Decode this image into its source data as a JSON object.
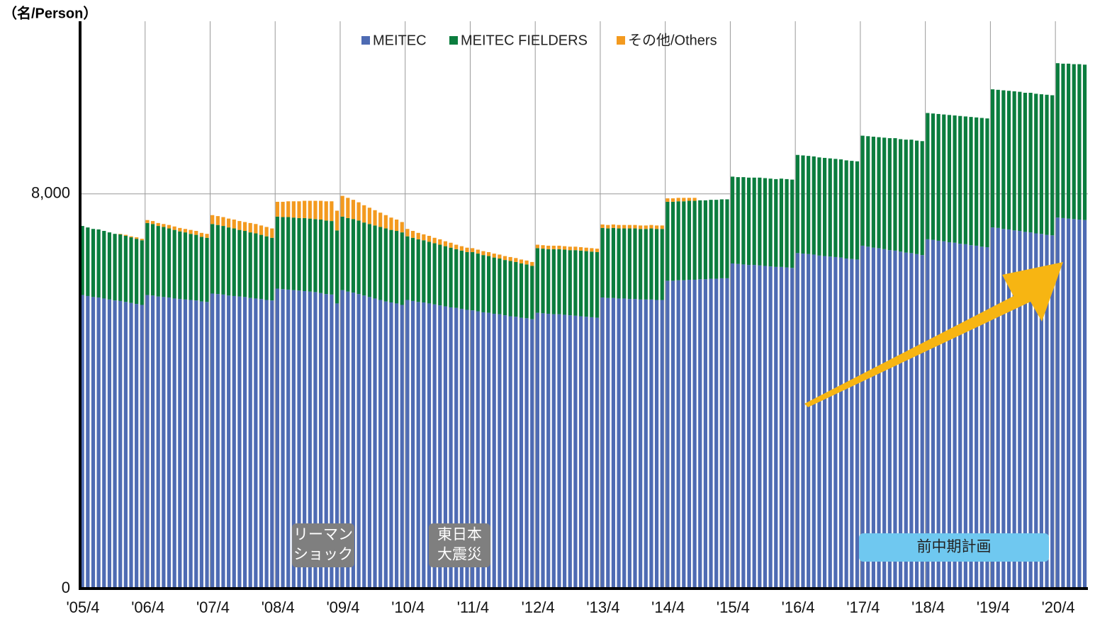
{
  "chart_data": {
    "type": "stacked_bar",
    "y_unit_label": "（名/Person）",
    "categories": [
      "'05/4",
      null,
      null,
      null,
      null,
      null,
      null,
      null,
      null,
      null,
      null,
      null,
      "'06/4",
      null,
      null,
      null,
      null,
      null,
      null,
      null,
      null,
      null,
      null,
      null,
      "'07/4",
      null,
      null,
      null,
      null,
      null,
      null,
      null,
      null,
      null,
      null,
      null,
      "'08/4",
      null,
      null,
      null,
      null,
      null,
      null,
      null,
      null,
      null,
      null,
      null,
      "'09/4",
      null,
      null,
      null,
      null,
      null,
      null,
      null,
      null,
      null,
      null,
      null,
      "'10/4",
      null,
      null,
      null,
      null,
      null,
      null,
      null,
      null,
      null,
      null,
      null,
      "'11/4",
      null,
      null,
      null,
      null,
      null,
      null,
      null,
      null,
      null,
      null,
      null,
      "'12/4",
      null,
      null,
      null,
      null,
      null,
      null,
      null,
      null,
      null,
      null,
      null,
      "'13/4",
      null,
      null,
      null,
      null,
      null,
      null,
      null,
      null,
      null,
      null,
      null,
      "'14/4",
      null,
      null,
      null,
      null,
      null,
      null,
      null,
      null,
      null,
      null,
      null,
      "'15/4",
      null,
      null,
      null,
      null,
      null,
      null,
      null,
      null,
      null,
      null,
      null,
      "'16/4",
      null,
      null,
      null,
      null,
      null,
      null,
      null,
      null,
      null,
      null,
      null,
      "'17/4",
      null,
      null,
      null,
      null,
      null,
      null,
      null,
      null,
      null,
      null,
      null,
      "'18/4",
      null,
      null,
      null,
      null,
      null,
      null,
      null,
      null,
      null,
      null,
      null,
      "'19/4",
      null,
      null,
      null,
      null,
      null,
      null,
      null,
      null,
      null,
      null,
      null,
      "'20/4",
      null,
      null,
      null,
      null,
      null
    ],
    "series": [
      {
        "name": "MEITEC",
        "color": "#4e6bb3",
        "values": [
          5950,
          5930,
          5910,
          5900,
          5880,
          5860,
          5840,
          5830,
          5810,
          5790,
          5770,
          5750,
          5950,
          5940,
          5920,
          5910,
          5900,
          5880,
          5870,
          5860,
          5850,
          5840,
          5820,
          5810,
          5980,
          5970,
          5960,
          5940,
          5930,
          5920,
          5910,
          5890,
          5880,
          5870,
          5850,
          5840,
          6080,
          6070,
          6060,
          6050,
          6040,
          6030,
          6020,
          6010,
          5990,
          5970,
          5960,
          5780,
          6050,
          6020,
          6000,
          5970,
          5940,
          5910,
          5880,
          5850,
          5820,
          5800,
          5780,
          5750,
          5850,
          5830,
          5810,
          5800,
          5780,
          5760,
          5740,
          5720,
          5700,
          5690,
          5670,
          5650,
          5640,
          5620,
          5600,
          5590,
          5570,
          5560,
          5540,
          5520,
          5510,
          5490,
          5480,
          5460,
          5590,
          5580,
          5570,
          5560,
          5560,
          5550,
          5540,
          5530,
          5520,
          5510,
          5500,
          5490,
          5900,
          5890,
          5890,
          5880,
          5880,
          5870,
          5870,
          5860,
          5860,
          5860,
          5850,
          5850,
          6240,
          6240,
          6250,
          6250,
          6260,
          6260,
          6270,
          6270,
          6280,
          6280,
          6290,
          6290,
          6590,
          6580,
          6570,
          6560,
          6560,
          6550,
          6540,
          6530,
          6520,
          6520,
          6510,
          6500,
          6800,
          6790,
          6780,
          6770,
          6750,
          6740,
          6730,
          6720,
          6710,
          6690,
          6680,
          6670,
          6950,
          6930,
          6910,
          6900,
          6880,
          6860,
          6850,
          6830,
          6810,
          6800,
          6780,
          6760,
          7080,
          7070,
          7050,
          7040,
          7020,
          7010,
          6990,
          6980,
          6960,
          6950,
          6930,
          6920,
          7320,
          7310,
          7290,
          7280,
          7260,
          7250,
          7230,
          7220,
          7200,
          7190,
          7170,
          7160,
          7520,
          7510,
          7500,
          7490,
          7480,
          7470
        ]
      },
      {
        "name": "MEITEC FIELDERS",
        "color": "#0b7d3e",
        "values": [
          1400,
          1390,
          1380,
          1380,
          1370,
          1360,
          1350,
          1350,
          1340,
          1330,
          1320,
          1310,
          1460,
          1450,
          1430,
          1420,
          1400,
          1390,
          1370,
          1360,
          1340,
          1330,
          1310,
          1300,
          1410,
          1400,
          1390,
          1380,
          1370,
          1350,
          1340,
          1330,
          1320,
          1300,
          1290,
          1270,
          1460,
          1460,
          1470,
          1470,
          1470,
          1480,
          1480,
          1480,
          1490,
          1490,
          1490,
          1480,
          1490,
          1490,
          1490,
          1490,
          1480,
          1480,
          1480,
          1480,
          1480,
          1470,
          1470,
          1470,
          1290,
          1280,
          1270,
          1260,
          1250,
          1240,
          1230,
          1220,
          1210,
          1190,
          1180,
          1170,
          1180,
          1170,
          1160,
          1150,
          1140,
          1130,
          1120,
          1120,
          1110,
          1100,
          1090,
          1080,
          1310,
          1310,
          1310,
          1320,
          1320,
          1320,
          1320,
          1330,
          1330,
          1330,
          1330,
          1330,
          1410,
          1410,
          1420,
          1420,
          1420,
          1430,
          1430,
          1430,
          1430,
          1440,
          1440,
          1440,
          1600,
          1600,
          1600,
          1600,
          1600,
          1600,
          1600,
          1600,
          1600,
          1600,
          1600,
          1600,
          1760,
          1760,
          1770,
          1770,
          1770,
          1780,
          1780,
          1780,
          1780,
          1790,
          1790,
          1790,
          1990,
          1990,
          1990,
          1990,
          1990,
          1990,
          1990,
          1990,
          1990,
          1990,
          1990,
          1990,
          2230,
          2240,
          2250,
          2250,
          2260,
          2270,
          2280,
          2280,
          2290,
          2300,
          2300,
          2310,
          2560,
          2560,
          2570,
          2570,
          2580,
          2580,
          2590,
          2590,
          2600,
          2600,
          2610,
          2610,
          2800,
          2800,
          2810,
          2810,
          2820,
          2820,
          2820,
          2830,
          2830,
          2830,
          2840,
          2840,
          3130,
          3130,
          3140,
          3140,
          3150,
          3150
        ]
      },
      {
        "name": "その他/Others",
        "color": "#f39a1f",
        "values": [
          0,
          0,
          0,
          0,
          0,
          0,
          0,
          10,
          20,
          20,
          30,
          30,
          60,
          60,
          60,
          60,
          70,
          70,
          70,
          70,
          80,
          80,
          80,
          80,
          180,
          180,
          180,
          180,
          180,
          180,
          180,
          190,
          190,
          190,
          190,
          190,
          300,
          310,
          320,
          330,
          340,
          350,
          360,
          370,
          380,
          390,
          400,
          400,
          420,
          410,
          390,
          370,
          350,
          330,
          310,
          290,
          270,
          250,
          230,
          210,
          150,
          140,
          130,
          120,
          120,
          110,
          110,
          100,
          100,
          90,
          90,
          90,
          80,
          80,
          80,
          80,
          80,
          80,
          80,
          80,
          80,
          80,
          80,
          80,
          70,
          70,
          70,
          70,
          70,
          70,
          70,
          70,
          70,
          70,
          70,
          70,
          70,
          70,
          70,
          70,
          70,
          70,
          70,
          70,
          70,
          70,
          70,
          70,
          70,
          70,
          70,
          70,
          60,
          60,
          0,
          0,
          0,
          0,
          0,
          0,
          0,
          0,
          0,
          0,
          0,
          0,
          0,
          0,
          0,
          0,
          0,
          0,
          0,
          0,
          0,
          0,
          0,
          0,
          0,
          0,
          0,
          0,
          0,
          0,
          0,
          0,
          0,
          0,
          0,
          0,
          0,
          0,
          0,
          0,
          0,
          0,
          0,
          0,
          0,
          0,
          0,
          0,
          0,
          0,
          0,
          0,
          0,
          0,
          0,
          0,
          0,
          0,
          0,
          0,
          0,
          0,
          0,
          0,
          0,
          0,
          0,
          0,
          0,
          0,
          0,
          0
        ]
      }
    ],
    "ylim": [
      0,
      11500
    ],
    "yticks": [
      0,
      {
        "value": 8000,
        "label": "8,000"
      }
    ],
    "grid": true,
    "annotations": [
      {
        "lines": [
          "リーマン",
          "ショック"
        ]
      },
      {
        "lines": [
          "東日本",
          "大震災"
        ]
      },
      {
        "lines": [
          "前中期計画"
        ]
      }
    ]
  }
}
